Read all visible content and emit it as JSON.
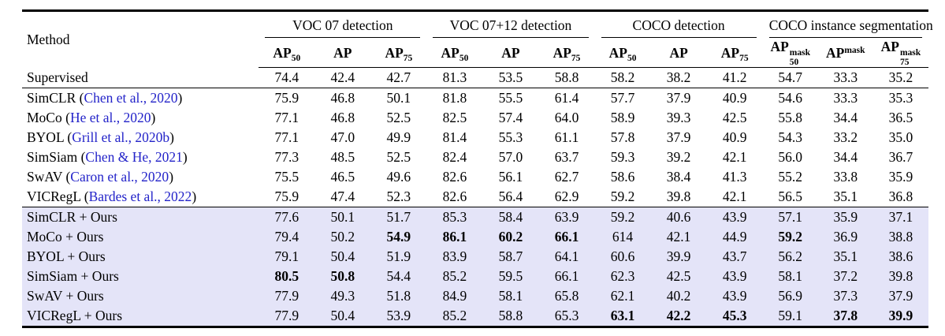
{
  "colors": {
    "citation_blue": "#2323c9",
    "highlight_background": "#e4e4f8"
  },
  "table": {
    "method_header": "Method",
    "citation_paren_open": "(",
    "citation_paren_close": ")",
    "groups": [
      {
        "label": "VOC 07 detection"
      },
      {
        "label": "VOC 07+12 detection"
      },
      {
        "label": "COCO detection"
      },
      {
        "label": "COCO instance segmentation"
      }
    ],
    "columns": [
      {
        "base": "AP",
        "sub": "50",
        "sup": ""
      },
      {
        "base": "AP",
        "sub": "",
        "sup": ""
      },
      {
        "base": "AP",
        "sub": "75",
        "sup": ""
      },
      {
        "base": "AP",
        "sub": "50",
        "sup": ""
      },
      {
        "base": "AP",
        "sub": "",
        "sup": ""
      },
      {
        "base": "AP",
        "sub": "75",
        "sup": ""
      },
      {
        "base": "AP",
        "sub": "50",
        "sup": ""
      },
      {
        "base": "AP",
        "sub": "",
        "sup": ""
      },
      {
        "base": "AP",
        "sub": "75",
        "sup": ""
      },
      {
        "base": "AP",
        "sub": "50",
        "sup": "mask"
      },
      {
        "base": "AP",
        "sub": "",
        "sup": "mask"
      },
      {
        "base": "AP",
        "sub": "75",
        "sup": "mask"
      }
    ],
    "sections": [
      {
        "highlight": false,
        "rows": [
          {
            "name": "Supervised",
            "citation": "",
            "values": [
              "74.4",
              "42.4",
              "42.7",
              "81.3",
              "53.5",
              "58.8",
              "58.2",
              "38.2",
              "41.2",
              "54.7",
              "33.3",
              "35.2"
            ],
            "bold": []
          }
        ]
      },
      {
        "highlight": false,
        "rows": [
          {
            "name": "SimCLR",
            "citation": "Chen et al., 2020",
            "values": [
              "75.9",
              "46.8",
              "50.1",
              "81.8",
              "55.5",
              "61.4",
              "57.7",
              "37.9",
              "40.9",
              "54.6",
              "33.3",
              "35.3"
            ],
            "bold": []
          },
          {
            "name": "MoCo",
            "citation": "He et al., 2020",
            "values": [
              "77.1",
              "46.8",
              "52.5",
              "82.5",
              "57.4",
              "64.0",
              "58.9",
              "39.3",
              "42.5",
              "55.8",
              "34.4",
              "36.5"
            ],
            "bold": []
          },
          {
            "name": "BYOL",
            "citation": "Grill et al., 2020b",
            "values": [
              "77.1",
              "47.0",
              "49.9",
              "81.4",
              "55.3",
              "61.1",
              "57.8",
              "37.9",
              "40.9",
              "54.3",
              "33.2",
              "35.0"
            ],
            "bold": []
          },
          {
            "name": "SimSiam",
            "citation": "Chen & He, 2021",
            "values": [
              "77.3",
              "48.5",
              "52.5",
              "82.4",
              "57.0",
              "63.7",
              "59.3",
              "39.2",
              "42.1",
              "56.0",
              "34.4",
              "36.7"
            ],
            "bold": []
          },
          {
            "name": "SwAV",
            "citation": "Caron et al., 2020",
            "values": [
              "75.5",
              "46.5",
              "49.6",
              "82.6",
              "56.1",
              "62.7",
              "58.6",
              "38.4",
              "41.3",
              "55.2",
              "33.8",
              "35.9"
            ],
            "bold": []
          },
          {
            "name": "VICRegL",
            "citation": "Bardes et al., 2022",
            "values": [
              "75.9",
              "47.4",
              "52.3",
              "82.6",
              "56.4",
              "62.9",
              "59.2",
              "39.8",
              "42.1",
              "56.5",
              "35.1",
              "36.8"
            ],
            "bold": []
          }
        ]
      },
      {
        "highlight": true,
        "rows": [
          {
            "name": "SimCLR + Ours",
            "citation": "",
            "values": [
              "77.6",
              "50.1",
              "51.7",
              "85.3",
              "58.4",
              "63.9",
              "59.2",
              "40.6",
              "43.9",
              "57.1",
              "35.9",
              "37.1"
            ],
            "bold": []
          },
          {
            "name": "MoCo + Ours",
            "citation": "",
            "values": [
              "79.4",
              "50.2",
              "54.9",
              "86.1",
              "60.2",
              "66.1",
              "614",
              "42.1",
              "44.9",
              "59.2",
              "36.9",
              "38.8"
            ],
            "bold": [
              2,
              3,
              4,
              5,
              9
            ]
          },
          {
            "name": "BYOL + Ours",
            "citation": "",
            "values": [
              "79.1",
              "50.4",
              "51.9",
              "83.9",
              "58.7",
              "64.1",
              "60.6",
              "39.9",
              "43.7",
              "56.2",
              "35.1",
              "38.6"
            ],
            "bold": []
          },
          {
            "name": "SimSiam + Ours",
            "citation": "",
            "values": [
              "80.5",
              "50.8",
              "54.4",
              "85.2",
              "59.5",
              "66.1",
              "62.3",
              "42.5",
              "43.9",
              "58.1",
              "37.2",
              "39.8"
            ],
            "bold": [
              0,
              1
            ]
          },
          {
            "name": "SwAV + Ours",
            "citation": "",
            "values": [
              "77.9",
              "49.3",
              "51.8",
              "84.9",
              "58.1",
              "65.8",
              "62.1",
              "40.2",
              "43.9",
              "56.9",
              "37.3",
              "37.9"
            ],
            "bold": []
          },
          {
            "name": "VICRegL + Ours",
            "citation": "",
            "values": [
              "77.9",
              "50.4",
              "53.9",
              "85.2",
              "58.8",
              "65.3",
              "63.1",
              "42.2",
              "45.3",
              "59.1",
              "37.8",
              "39.9"
            ],
            "bold": [
              6,
              7,
              8,
              10,
              11
            ]
          }
        ]
      }
    ]
  }
}
